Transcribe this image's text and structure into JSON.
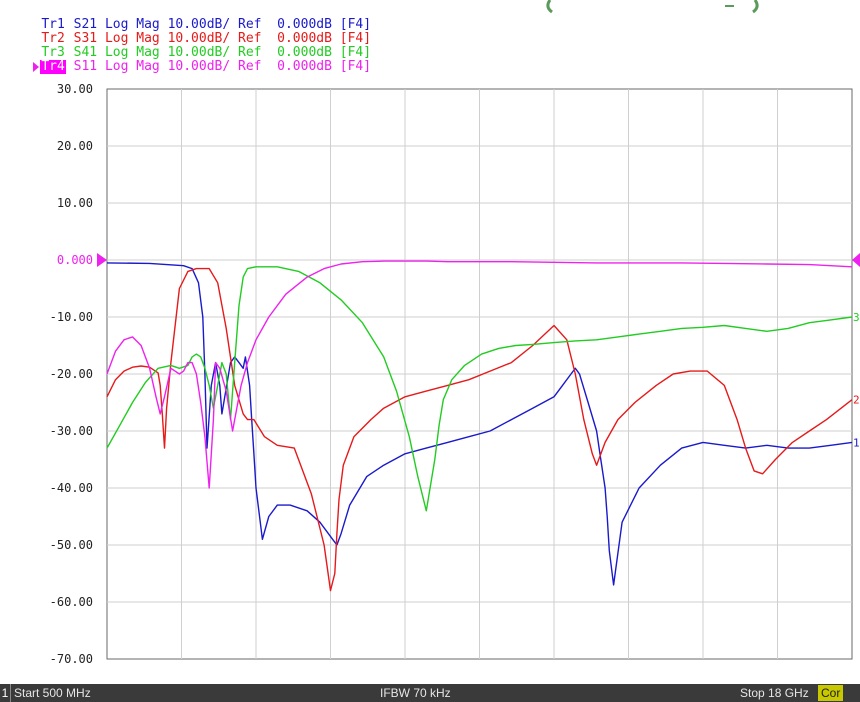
{
  "traces": [
    {
      "id": "Tr1",
      "param": "S21",
      "format": "Log Mag",
      "scale": "10.00dB/",
      "ref_label": "Ref",
      "ref": "0.000dB",
      "channel": "[F4]",
      "color": "#1a1acc",
      "active": false
    },
    {
      "id": "Tr2",
      "param": "S31",
      "format": "Log Mag",
      "scale": "10.00dB/",
      "ref_label": "Ref",
      "ref": "0.000dB",
      "channel": "[F4]",
      "color": "#e61a1a",
      "active": false
    },
    {
      "id": "Tr3",
      "param": "S41",
      "format": "Log Mag",
      "scale": "10.00dB/",
      "ref_label": "Ref",
      "ref": "0.000dB",
      "channel": "[F4]",
      "color": "#22cc22",
      "active": false
    },
    {
      "id": "Tr4",
      "param": "S11",
      "format": "Log Mag",
      "scale": "10.00dB/",
      "ref_label": "Ref",
      "ref": "0.000dB",
      "channel": "[F4]",
      "color": "#ee22ee",
      "active": true
    }
  ],
  "status_bar": {
    "channel_number": "1",
    "start": "Start 500 MHz",
    "ifbw": "IFBW 70 kHz",
    "stop": "Stop 18 GHz",
    "correction": "Cor"
  },
  "colors": {
    "grid": "#cfcfcf",
    "frame": "#6a6a6a",
    "status_bg": "#3a3a3a",
    "cor_bg": "#c8c800",
    "ref_marker": "#ee22ee",
    "tick_text": "#222222"
  },
  "chart_data": {
    "type": "line",
    "xlabel": "",
    "ylabel": "",
    "xlim_mhz": [
      500,
      18000
    ],
    "ylim": [
      -70,
      30
    ],
    "y_ticks": [
      30,
      20,
      10,
      0,
      -10,
      -20,
      -30,
      -40,
      -50,
      -60,
      -70
    ],
    "y_tick_labels": [
      "30.00",
      "20.00",
      "10.00",
      "0.000",
      "-10.00",
      "-20.00",
      "-30.00",
      "-40.00",
      "-50.00",
      "-60.00",
      "-70.00"
    ],
    "x_divisions": 10,
    "grid": true,
    "reference_level": 0,
    "series": [
      {
        "trace": "Tr1",
        "end_label": "1",
        "color": "#1a1acc",
        "x_mhz": [
          500,
          1500,
          1900,
          2300,
          2500,
          2650,
          2750,
          2800,
          2850,
          2950,
          3050,
          3150,
          3200,
          3400,
          3500,
          3600,
          3700,
          3750,
          3850,
          3900,
          3950,
          4000,
          4150,
          4300,
          4500,
          4800,
          5200,
          5500,
          5800,
          5900,
          6000,
          6200,
          6600,
          7000,
          7500,
          8000,
          8500,
          9000,
          9500,
          10000,
          10500,
          11000,
          11200,
          11400,
          11500,
          11600,
          11800,
          12000,
          12100,
          12200,
          12250,
          12300,
          12400,
          12600,
          13000,
          13500,
          14000,
          14500,
          15000,
          15500,
          16000,
          16500,
          17000,
          17500,
          18000
        ],
        "y_db": [
          -0.5,
          -0.6,
          -0.8,
          -1.0,
          -1.5,
          -4,
          -10,
          -20,
          -33,
          -22,
          -18,
          -22,
          -27,
          -18,
          -17,
          -18,
          -19,
          -17,
          -22,
          -28,
          -34,
          -40,
          -49,
          -45,
          -43,
          -43,
          -44,
          -46,
          -49,
          -50,
          -48,
          -43,
          -38,
          -36,
          -34,
          -33,
          -32,
          -31,
          -30,
          -28,
          -26,
          -24,
          -22,
          -20,
          -19,
          -20,
          -25,
          -30,
          -35,
          -40,
          -45,
          -51,
          -57,
          -46,
          -40,
          -36,
          -33,
          -32,
          -32.5,
          -33,
          -32.5,
          -33,
          -33,
          -32.5,
          -32
        ]
      },
      {
        "trace": "Tr2",
        "end_label": "2",
        "color": "#e61a1a",
        "x_mhz": [
          500,
          700,
          900,
          1100,
          1300,
          1500,
          1700,
          1750,
          1800,
          1850,
          1900,
          2000,
          2200,
          2400,
          2600,
          2900,
          3100,
          3300,
          3500,
          3700,
          3800,
          3950,
          4200,
          4500,
          4900,
          5300,
          5600,
          5750,
          5850,
          5900,
          5950,
          6050,
          6300,
          6700,
          7000,
          7500,
          8000,
          8500,
          9000,
          9500,
          10000,
          10500,
          11000,
          11300,
          11500,
          11700,
          11900,
          12000,
          12200,
          12500,
          12900,
          13400,
          13800,
          14200,
          14600,
          15000,
          15300,
          15500,
          15700,
          15900,
          16200,
          16600,
          17000,
          17400,
          18000
        ],
        "y_db": [
          -24,
          -21,
          -19.5,
          -18.8,
          -18.6,
          -18.8,
          -19.8,
          -22,
          -27,
          -33,
          -26,
          -18,
          -5,
          -2,
          -1.5,
          -1.5,
          -4,
          -12,
          -22,
          -27,
          -28,
          -28,
          -31,
          -32.5,
          -33,
          -41,
          -50,
          -58,
          -55,
          -48,
          -42,
          -36,
          -31,
          -28,
          -26,
          -24,
          -23,
          -22,
          -21,
          -19.5,
          -18,
          -15,
          -11.5,
          -14,
          -20,
          -28,
          -34,
          -36,
          -32,
          -28,
          -25,
          -22,
          -20,
          -19.5,
          -19.5,
          -22,
          -28,
          -33,
          -37,
          -37.5,
          -35,
          -32,
          -30,
          -28,
          -24.5
        ]
      },
      {
        "trace": "Tr3",
        "end_label": "3",
        "color": "#22cc22",
        "x_mhz": [
          500,
          800,
          1100,
          1400,
          1700,
          2000,
          2200,
          2400,
          2500,
          2600,
          2700,
          2800,
          2900,
          3000,
          3100,
          3200,
          3300,
          3400,
          3500,
          3600,
          3700,
          3800,
          4000,
          4500,
          5000,
          5500,
          6000,
          6500,
          7000,
          7300,
          7600,
          7800,
          8000,
          8200,
          8300,
          8400,
          8600,
          8900,
          9300,
          9700,
          10100,
          10500,
          11000,
          11500,
          12000,
          12500,
          13000,
          13500,
          14000,
          14500,
          15000,
          15500,
          16000,
          16500,
          17000,
          17500,
          18000
        ],
        "y_db": [
          -33,
          -29,
          -25,
          -21.5,
          -19,
          -18.5,
          -19,
          -18.5,
          -17,
          -16.5,
          -17,
          -19,
          -22,
          -26,
          -22,
          -18,
          -20,
          -28,
          -18,
          -8,
          -3,
          -1.5,
          -1.2,
          -1.2,
          -2,
          -4,
          -7,
          -11,
          -17,
          -23,
          -31,
          -38,
          -44,
          -35,
          -29,
          -24.5,
          -21,
          -18.5,
          -16.5,
          -15.5,
          -15,
          -14.8,
          -14.5,
          -14.2,
          -14,
          -13.5,
          -13,
          -12.5,
          -12,
          -11.8,
          -11.5,
          -12,
          -12.5,
          -12,
          -11,
          -10.5,
          -10
        ]
      },
      {
        "trace": "Tr4",
        "end_label": "",
        "color": "#ee22ee",
        "x_mhz": [
          500,
          700,
          900,
          1100,
          1300,
          1500,
          1650,
          1750,
          1850,
          2000,
          2200,
          2300,
          2400,
          2500,
          2600,
          2700,
          2800,
          2900,
          3000,
          3050,
          3150,
          3300,
          3450,
          3550,
          3650,
          3800,
          4000,
          4300,
          4700,
          5200,
          5600,
          6000,
          6500,
          7000,
          7500,
          8000,
          8500,
          9000,
          10000,
          11000,
          12000,
          13000,
          14000,
          15000,
          16000,
          17000,
          17500,
          18000
        ],
        "y_db": [
          -20,
          -16,
          -14,
          -13.5,
          -15,
          -19,
          -24,
          -27,
          -24,
          -19,
          -20,
          -19.5,
          -18,
          -18,
          -20,
          -25,
          -31,
          -40,
          -28,
          -18,
          -19,
          -23,
          -30,
          -26,
          -22,
          -18,
          -14,
          -10,
          -6,
          -3,
          -1.5,
          -0.7,
          -0.3,
          -0.2,
          -0.2,
          -0.2,
          -0.3,
          -0.3,
          -0.3,
          -0.4,
          -0.5,
          -0.5,
          -0.5,
          -0.6,
          -0.7,
          -0.8,
          -1.0,
          -1.2
        ]
      }
    ]
  }
}
